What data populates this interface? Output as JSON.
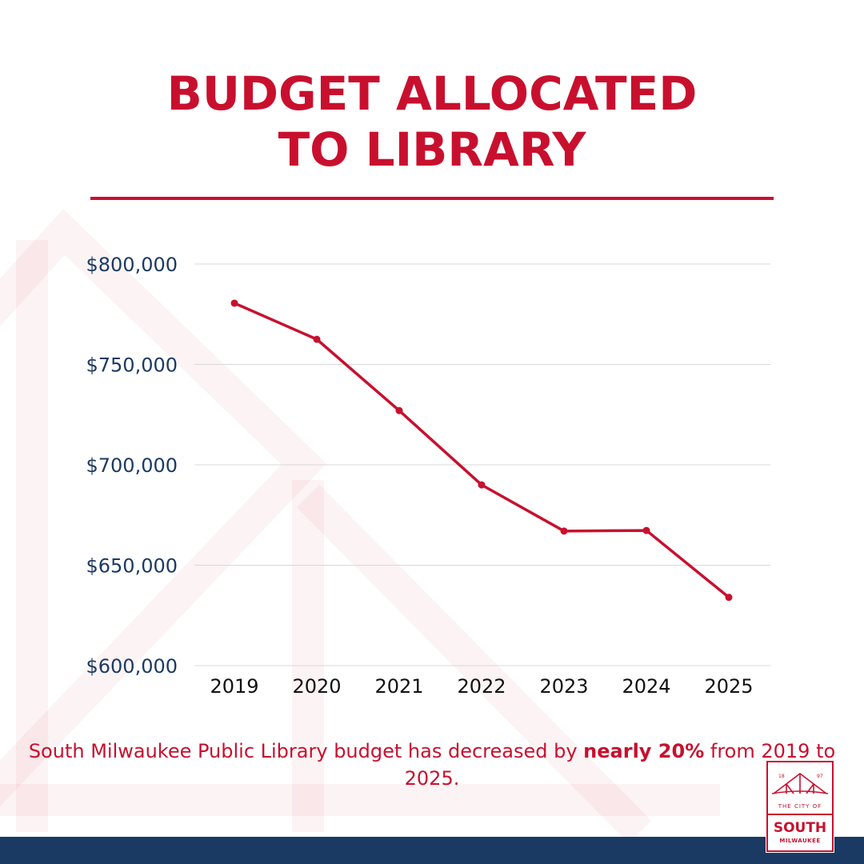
{
  "title_line1": "BUDGET ALLOCATED",
  "title_line2": "TO LIBRARY",
  "chart_data": {
    "type": "line",
    "title": "BUDGET ALLOCATED TO LIBRARY",
    "categories": [
      "2019",
      "2020",
      "2021",
      "2022",
      "2023",
      "2024",
      "2025"
    ],
    "values": [
      780500,
      762500,
      727000,
      690000,
      667000,
      667300,
      634000
    ],
    "ylim": [
      600000,
      800000
    ],
    "yticks": [
      600000,
      650000,
      700000,
      750000,
      800000
    ],
    "ytick_labels": [
      "$600,000",
      "$650,000",
      "$700,000",
      "$750,000",
      "$800,000"
    ],
    "grid": "horizontal",
    "line_color": "#c8102e"
  },
  "caption": {
    "pre": "South Milwaukee Public Library budget has decreased by ",
    "bold": "nearly 20%",
    "post": " from 2019 to 2025."
  },
  "logo": {
    "year_left": "18",
    "year_right": "97",
    "line1": "THE CITY OF",
    "line2": "SOUTH",
    "line3": "MILWAUKEE"
  },
  "colors": {
    "accent": "#c8102e",
    "navy": "#1b3a63"
  }
}
